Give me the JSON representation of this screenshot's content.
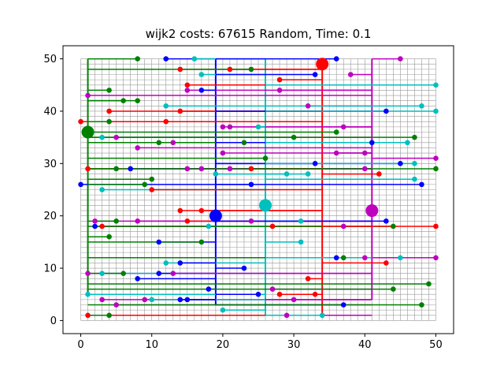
{
  "chart_data": {
    "type": "scatter",
    "title": "wijk2 costs: 67615 Random, Time: 0.1",
    "xlim": [
      -2.5,
      52.5
    ],
    "ylim": [
      -2.5,
      52.5
    ],
    "xticks": [
      0,
      10,
      20,
      30,
      40,
      50
    ],
    "yticks": [
      0,
      10,
      20,
      30,
      40,
      50
    ],
    "grid": {
      "type": "lattice",
      "xrange": [
        0,
        50
      ],
      "yrange": [
        0,
        50
      ],
      "step": 1,
      "color": "#999999"
    },
    "batteries": [
      {
        "name": "",
        "color": "#008000",
        "x": 1,
        "y": 36,
        "trunk": {
          "x": 1,
          "y0": 5,
          "y1": 50
        }
      },
      {
        "name": "",
        "color": "#ff0000",
        "x": 34,
        "y": 49,
        "trunk": {
          "x": 34,
          "y0": 1,
          "y1": 49
        }
      },
      {
        "name": "",
        "color": "#0000ff",
        "x": 19,
        "y": 20,
        "trunk": {
          "x": 19,
          "y0": 3,
          "y1": 50
        }
      },
      {
        "name": "",
        "color": "#00bfbf",
        "x": 26,
        "y": 22,
        "trunk": {
          "x": 26,
          "y0": 1,
          "y1": 50
        }
      },
      {
        "name": "",
        "color": "#bf00bf",
        "x": 41,
        "y": 21,
        "trunk": {
          "x": 41,
          "y0": 4,
          "y1": 50
        }
      }
    ],
    "houses": [
      {
        "x": 8,
        "y": 50,
        "c": "#008000"
      },
      {
        "x": 12,
        "y": 50,
        "c": "#0000ff"
      },
      {
        "x": 16,
        "y": 50,
        "c": "#00bfbf"
      },
      {
        "x": 36,
        "y": 50,
        "c": "#0000ff"
      },
      {
        "x": 45,
        "y": 50,
        "c": "#bf00bf"
      },
      {
        "x": 14,
        "y": 48,
        "c": "#ff0000"
      },
      {
        "x": 21,
        "y": 48,
        "c": "#ff0000"
      },
      {
        "x": 24,
        "y": 48,
        "c": "#008000"
      },
      {
        "x": 17,
        "y": 47,
        "c": "#00bfbf"
      },
      {
        "x": 33,
        "y": 47,
        "c": "#0000ff"
      },
      {
        "x": 38,
        "y": 47,
        "c": "#bf00bf"
      },
      {
        "x": 28,
        "y": 46,
        "c": "#ff0000"
      },
      {
        "x": 15,
        "y": 45,
        "c": "#ff0000"
      },
      {
        "x": 50,
        "y": 45,
        "c": "#00bfbf"
      },
      {
        "x": 4,
        "y": 44,
        "c": "#008000"
      },
      {
        "x": 15,
        "y": 44,
        "c": "#bf00bf"
      },
      {
        "x": 17,
        "y": 44,
        "c": "#0000ff"
      },
      {
        "x": 28,
        "y": 44,
        "c": "#bf00bf"
      },
      {
        "x": 1,
        "y": 43,
        "c": "#bf00bf"
      },
      {
        "x": 6,
        "y": 42,
        "c": "#008000"
      },
      {
        "x": 8,
        "y": 42,
        "c": "#008000"
      },
      {
        "x": 12,
        "y": 41,
        "c": "#00bfbf"
      },
      {
        "x": 32,
        "y": 41,
        "c": "#bf00bf"
      },
      {
        "x": 48,
        "y": 41,
        "c": "#00bfbf"
      },
      {
        "x": 4,
        "y": 40,
        "c": "#ff0000"
      },
      {
        "x": 14,
        "y": 40,
        "c": "#ff0000"
      },
      {
        "x": 43,
        "y": 40,
        "c": "#0000ff"
      },
      {
        "x": 50,
        "y": 40,
        "c": "#00bfbf"
      },
      {
        "x": 0,
        "y": 38,
        "c": "#ff0000"
      },
      {
        "x": 4,
        "y": 38,
        "c": "#008000"
      },
      {
        "x": 12,
        "y": 38,
        "c": "#ff0000"
      },
      {
        "x": 20,
        "y": 37,
        "c": "#bf00bf"
      },
      {
        "x": 21,
        "y": 37,
        "c": "#bf00bf"
      },
      {
        "x": 25,
        "y": 37,
        "c": "#00bfbf"
      },
      {
        "x": 37,
        "y": 37,
        "c": "#bf00bf"
      },
      {
        "x": 36,
        "y": 36,
        "c": "#008000"
      },
      {
        "x": 3,
        "y": 35,
        "c": "#00bfbf"
      },
      {
        "x": 5,
        "y": 35,
        "c": "#bf00bf"
      },
      {
        "x": 30,
        "y": 35,
        "c": "#008000"
      },
      {
        "x": 47,
        "y": 35,
        "c": "#008000"
      },
      {
        "x": 11,
        "y": 34,
        "c": "#008000"
      },
      {
        "x": 13,
        "y": 34,
        "c": "#bf00bf"
      },
      {
        "x": 23,
        "y": 34,
        "c": "#008000"
      },
      {
        "x": 41,
        "y": 34,
        "c": "#0000ff"
      },
      {
        "x": 46,
        "y": 34,
        "c": "#00bfbf"
      },
      {
        "x": 8,
        "y": 33,
        "c": "#bf00bf"
      },
      {
        "x": 20,
        "y": 32,
        "c": "#bf00bf"
      },
      {
        "x": 36,
        "y": 32,
        "c": "#bf00bf"
      },
      {
        "x": 40,
        "y": 32,
        "c": "#bf00bf"
      },
      {
        "x": 26,
        "y": 31,
        "c": "#008000"
      },
      {
        "x": 50,
        "y": 31,
        "c": "#bf00bf"
      },
      {
        "x": 33,
        "y": 30,
        "c": "#0000ff"
      },
      {
        "x": 45,
        "y": 30,
        "c": "#0000ff"
      },
      {
        "x": 47,
        "y": 30,
        "c": "#00bfbf"
      },
      {
        "x": 1,
        "y": 29,
        "c": "#ff0000"
      },
      {
        "x": 5,
        "y": 29,
        "c": "#008000"
      },
      {
        "x": 7,
        "y": 29,
        "c": "#0000ff"
      },
      {
        "x": 15,
        "y": 29,
        "c": "#bf00bf"
      },
      {
        "x": 17,
        "y": 29,
        "c": "#bf00bf"
      },
      {
        "x": 21,
        "y": 29,
        "c": "#bf00bf"
      },
      {
        "x": 24,
        "y": 29,
        "c": "#ff0000"
      },
      {
        "x": 40,
        "y": 29,
        "c": "#bf00bf"
      },
      {
        "x": 50,
        "y": 29,
        "c": "#008000"
      },
      {
        "x": 19,
        "y": 28,
        "c": "#00bfbf"
      },
      {
        "x": 29,
        "y": 28,
        "c": "#00bfbf"
      },
      {
        "x": 32,
        "y": 28,
        "c": "#00bfbf"
      },
      {
        "x": 42,
        "y": 28,
        "c": "#ff0000"
      },
      {
        "x": 10,
        "y": 27,
        "c": "#008000"
      },
      {
        "x": 47,
        "y": 27,
        "c": "#00bfbf"
      },
      {
        "x": 0,
        "y": 26,
        "c": "#0000ff"
      },
      {
        "x": 9,
        "y": 26,
        "c": "#008000"
      },
      {
        "x": 24,
        "y": 26,
        "c": "#0000ff"
      },
      {
        "x": 48,
        "y": 26,
        "c": "#0000ff"
      },
      {
        "x": 3,
        "y": 25,
        "c": "#00bfbf"
      },
      {
        "x": 10,
        "y": 25,
        "c": "#ff0000"
      },
      {
        "x": 14,
        "y": 21,
        "c": "#ff0000"
      },
      {
        "x": 17,
        "y": 21,
        "c": "#ff0000"
      },
      {
        "x": 2,
        "y": 19,
        "c": "#bf00bf"
      },
      {
        "x": 5,
        "y": 19,
        "c": "#008000"
      },
      {
        "x": 8,
        "y": 19,
        "c": "#bf00bf"
      },
      {
        "x": 15,
        "y": 19,
        "c": "#ff0000"
      },
      {
        "x": 24,
        "y": 19,
        "c": "#bf00bf"
      },
      {
        "x": 31,
        "y": 19,
        "c": "#00bfbf"
      },
      {
        "x": 43,
        "y": 19,
        "c": "#0000ff"
      },
      {
        "x": 2,
        "y": 18,
        "c": "#0000ff"
      },
      {
        "x": 3,
        "y": 18,
        "c": "#ff0000"
      },
      {
        "x": 18,
        "y": 18,
        "c": "#00bfbf"
      },
      {
        "x": 27,
        "y": 18,
        "c": "#ff0000"
      },
      {
        "x": 37,
        "y": 18,
        "c": "#bf00bf"
      },
      {
        "x": 44,
        "y": 18,
        "c": "#008000"
      },
      {
        "x": 50,
        "y": 18,
        "c": "#ff0000"
      },
      {
        "x": 4,
        "y": 16,
        "c": "#008000"
      },
      {
        "x": 11,
        "y": 15,
        "c": "#0000ff"
      },
      {
        "x": 17,
        "y": 15,
        "c": "#008000"
      },
      {
        "x": 31,
        "y": 15,
        "c": "#00bfbf"
      },
      {
        "x": 36,
        "y": 12,
        "c": "#0000ff"
      },
      {
        "x": 37,
        "y": 12,
        "c": "#008000"
      },
      {
        "x": 40,
        "y": 12,
        "c": "#bf00bf"
      },
      {
        "x": 45,
        "y": 12,
        "c": "#00bfbf"
      },
      {
        "x": 50,
        "y": 12,
        "c": "#bf00bf"
      },
      {
        "x": 12,
        "y": 11,
        "c": "#00bfbf"
      },
      {
        "x": 14,
        "y": 11,
        "c": "#0000ff"
      },
      {
        "x": 43,
        "y": 11,
        "c": "#ff0000"
      },
      {
        "x": 23,
        "y": 10,
        "c": "#0000ff"
      },
      {
        "x": 1,
        "y": 9,
        "c": "#bf00bf"
      },
      {
        "x": 3,
        "y": 9,
        "c": "#00bfbf"
      },
      {
        "x": 6,
        "y": 9,
        "c": "#008000"
      },
      {
        "x": 11,
        "y": 9,
        "c": "#0000ff"
      },
      {
        "x": 13,
        "y": 9,
        "c": "#bf00bf"
      },
      {
        "x": 8,
        "y": 8,
        "c": "#0000ff"
      },
      {
        "x": 32,
        "y": 8,
        "c": "#ff0000"
      },
      {
        "x": 49,
        "y": 7,
        "c": "#008000"
      },
      {
        "x": 18,
        "y": 6,
        "c": "#0000ff"
      },
      {
        "x": 27,
        "y": 6,
        "c": "#bf00bf"
      },
      {
        "x": 44,
        "y": 6,
        "c": "#008000"
      },
      {
        "x": 1,
        "y": 5,
        "c": "#00bfbf"
      },
      {
        "x": 25,
        "y": 5,
        "c": "#0000ff"
      },
      {
        "x": 28,
        "y": 5,
        "c": "#ff0000"
      },
      {
        "x": 33,
        "y": 5,
        "c": "#ff0000"
      },
      {
        "x": 3,
        "y": 4,
        "c": "#bf00bf"
      },
      {
        "x": 9,
        "y": 4,
        "c": "#bf00bf"
      },
      {
        "x": 10,
        "y": 4,
        "c": "#00bfbf"
      },
      {
        "x": 14,
        "y": 4,
        "c": "#0000ff"
      },
      {
        "x": 15,
        "y": 4,
        "c": "#0000ff"
      },
      {
        "x": 30,
        "y": 4,
        "c": "#bf00bf"
      },
      {
        "x": 5,
        "y": 3,
        "c": "#bf00bf"
      },
      {
        "x": 37,
        "y": 3,
        "c": "#0000ff"
      },
      {
        "x": 48,
        "y": 3,
        "c": "#008000"
      },
      {
        "x": 20,
        "y": 2,
        "c": "#00bfbf"
      },
      {
        "x": 1,
        "y": 1,
        "c": "#ff0000"
      },
      {
        "x": 4,
        "y": 1,
        "c": "#008000"
      },
      {
        "x": 29,
        "y": 1,
        "c": "#bf00bf"
      },
      {
        "x": 34,
        "y": 1,
        "c": "#00bfbf"
      }
    ]
  }
}
